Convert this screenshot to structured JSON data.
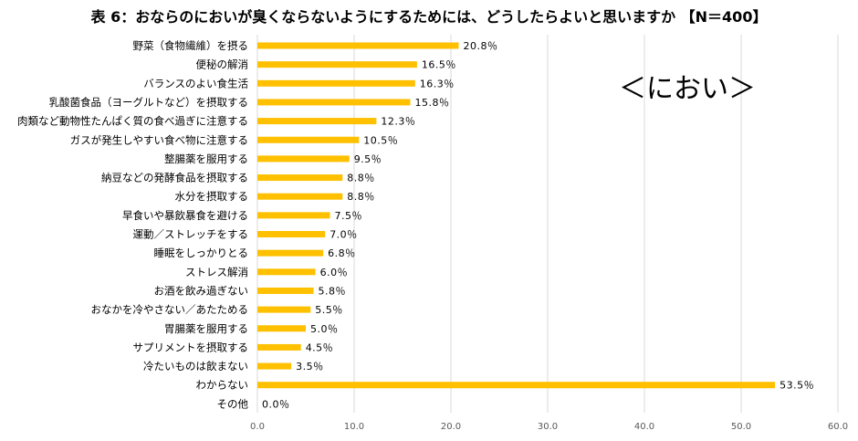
{
  "chart_data": {
    "type": "bar",
    "orientation": "horizontal",
    "title": "表 6：おならのにおいが臭くならないようにするためには、どうしたらよいと思いますか 【N＝400】",
    "annotation": "＜におい＞",
    "categories": [
      "野菜（食物繊維）を摂る",
      "便秘の解消",
      "バランスのよい食生活",
      "乳酸菌食品（ヨーグルトなど）を摂取する",
      "肉類など動物性たんぱく質の食べ過ぎに注意する",
      "ガスが発生しやすい食べ物に注意する",
      "整腸薬を服用する",
      "納豆などの発酵食品を摂取する",
      "水分を摂取する",
      "早食いや暴飲暴食を避ける",
      "運動／ストレッチをする",
      "睡眠をしっかりとる",
      "ストレス解消",
      "お酒を飲み過ぎない",
      "おなかを冷やさない／あたためる",
      "胃腸薬を服用する",
      "サプリメントを摂取する",
      "冷たいものは飲まない",
      "わからない",
      "その他"
    ],
    "values": [
      20.8,
      16.5,
      16.3,
      15.8,
      12.3,
      10.5,
      9.5,
      8.8,
      8.8,
      7.5,
      7.0,
      6.8,
      6.0,
      5.8,
      5.5,
      5.0,
      4.5,
      3.5,
      53.5,
      0.0
    ],
    "value_labels": [
      "20.8％",
      "16.5％",
      "16.3％",
      "15.8％",
      "12.3％",
      "10.5％",
      "9.5％",
      "8.8％",
      "8.8％",
      "7.5％",
      "7.0％",
      "6.8％",
      "6.0％",
      "5.8％",
      "5.5％",
      "5.0％",
      "4.5％",
      "3.5％",
      "53.5％",
      "0.0％"
    ],
    "xlim": [
      0,
      60
    ],
    "xticks": [
      0,
      10,
      20,
      30,
      40,
      50,
      60
    ],
    "xtick_labels": [
      "0.0",
      "10.0",
      "20.0",
      "30.0",
      "40.0",
      "50.0",
      "60.0"
    ],
    "xlabel": "",
    "ylabel": "",
    "grid": true,
    "bar_color": "#FFC000",
    "grid_color": "#D9D9D9"
  }
}
